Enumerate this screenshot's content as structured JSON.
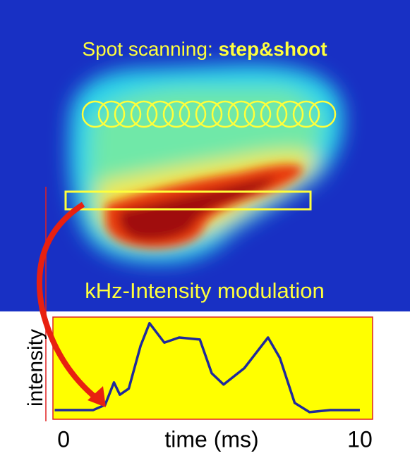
{
  "figure": {
    "title_prefix": "Spot scanning:",
    "title_bold": "step&shoot",
    "caption": "kHz-Intensity modulation"
  },
  "chart_data": {
    "type": "line",
    "xlabel": "time (ms)",
    "ylabel": "intensity",
    "x": [
      -0.3,
      1.0,
      1.4,
      1.7,
      1.9,
      2.2,
      2.6,
      2.9,
      3.4,
      3.9,
      4.6,
      5.0,
      5.4,
      6.1,
      6.9,
      7.3,
      7.8,
      8.3,
      9.0,
      10.0
    ],
    "values": [
      0.09,
      0.09,
      0.14,
      0.36,
      0.24,
      0.3,
      0.72,
      0.94,
      0.75,
      0.8,
      0.78,
      0.45,
      0.34,
      0.5,
      0.8,
      0.6,
      0.16,
      0.07,
      0.09,
      0.09
    ],
    "color": "#1f2a9c",
    "background": "#ffff00",
    "xlim": [
      -0.36,
      10.43
    ],
    "ylim": [
      0,
      1
    ],
    "xticks": [
      0,
      10
    ]
  }
}
